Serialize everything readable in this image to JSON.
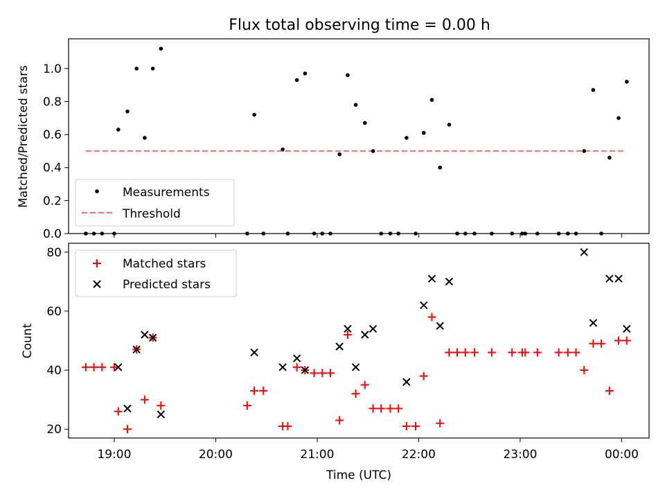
{
  "figure": {
    "title": "Flux total observing time = 0.00 h"
  },
  "chart_data": [
    {
      "type": "scatter",
      "name": "ratio-panel",
      "title": "Flux total observing time = 0.00 h",
      "xlabel": "",
      "ylabel": "Matched/Predicted stars",
      "xlim": [
        18.55,
        24.27
      ],
      "ylim": [
        0.0,
        1.18
      ],
      "yticks": [
        0.0,
        0.2,
        0.4,
        0.6,
        0.8,
        1.0
      ],
      "ytick_labels": [
        "0.0",
        "0.2",
        "0.4",
        "0.6",
        "0.8",
        "1.0"
      ],
      "xticks": [
        19,
        20,
        21,
        22,
        23,
        24
      ],
      "legend": {
        "position": "lower-left",
        "entries": [
          {
            "label": "Measurements",
            "marker": "dot",
            "color": "#000000"
          },
          {
            "label": "Threshold",
            "marker": "dashed-line",
            "color": "#ff6b6b"
          }
        ]
      },
      "threshold": {
        "x": [
          18.72,
          24.02
        ],
        "y": 0.5,
        "color": "#ff6b6b"
      },
      "series": [
        {
          "name": "Measurements",
          "color": "#000000",
          "points": [
            [
              18.72,
              0.0
            ],
            [
              18.8,
              0.0
            ],
            [
              18.88,
              0.0
            ],
            [
              19.0,
              0.0
            ],
            [
              19.04,
              0.63
            ],
            [
              19.13,
              0.74
            ],
            [
              19.22,
              1.0
            ],
            [
              19.3,
              0.58
            ],
            [
              19.38,
              1.0
            ],
            [
              19.46,
              1.12
            ],
            [
              20.31,
              0.0
            ],
            [
              20.38,
              0.72
            ],
            [
              20.47,
              0.0
            ],
            [
              20.66,
              0.51
            ],
            [
              20.71,
              0.0
            ],
            [
              20.8,
              0.93
            ],
            [
              20.88,
              0.97
            ],
            [
              20.97,
              0.0
            ],
            [
              21.05,
              0.0
            ],
            [
              21.13,
              0.0
            ],
            [
              21.22,
              0.48
            ],
            [
              21.3,
              0.96
            ],
            [
              21.38,
              0.78
            ],
            [
              21.47,
              0.67
            ],
            [
              21.55,
              0.5
            ],
            [
              21.63,
              0.0
            ],
            [
              21.72,
              0.0
            ],
            [
              21.8,
              0.0
            ],
            [
              21.88,
              0.58
            ],
            [
              21.97,
              0.0
            ],
            [
              22.05,
              0.61
            ],
            [
              22.13,
              0.81
            ],
            [
              22.21,
              0.4
            ],
            [
              22.3,
              0.66
            ],
            [
              22.38,
              0.0
            ],
            [
              22.46,
              0.0
            ],
            [
              22.55,
              0.0
            ],
            [
              22.72,
              0.0
            ],
            [
              22.92,
              0.0
            ],
            [
              23.02,
              0.0
            ],
            [
              23.05,
              0.0
            ],
            [
              23.17,
              0.0
            ],
            [
              23.38,
              0.0
            ],
            [
              23.47,
              0.0
            ],
            [
              23.55,
              0.0
            ],
            [
              23.63,
              0.5
            ],
            [
              23.72,
              0.87
            ],
            [
              23.8,
              0.0
            ],
            [
              23.88,
              0.46
            ],
            [
              23.97,
              0.7
            ],
            [
              24.05,
              0.92
            ]
          ]
        }
      ]
    },
    {
      "type": "scatter",
      "name": "count-panel",
      "title": "",
      "xlabel": "Time (UTC)",
      "ylabel": "Count",
      "xlim": [
        18.55,
        24.27
      ],
      "ylim": [
        17,
        83
      ],
      "yticks": [
        20,
        40,
        60,
        80
      ],
      "ytick_labels": [
        "20",
        "40",
        "60",
        "80"
      ],
      "xticks": [
        19,
        20,
        21,
        22,
        23,
        24
      ],
      "xtick_labels": [
        "19:00",
        "20:00",
        "21:00",
        "22:00",
        "23:00",
        "00:00"
      ],
      "legend": {
        "position": "upper-left",
        "entries": [
          {
            "label": "Matched stars",
            "marker": "plus",
            "color": "#ff0000"
          },
          {
            "label": "Predicted stars",
            "marker": "cross",
            "color": "#000000"
          }
        ]
      },
      "series": [
        {
          "name": "Matched stars",
          "marker": "plus",
          "color": "#ff0000",
          "points": [
            [
              18.72,
              41
            ],
            [
              18.8,
              41
            ],
            [
              18.88,
              41
            ],
            [
              19.0,
              41
            ],
            [
              19.04,
              26
            ],
            [
              19.13,
              20
            ],
            [
              19.22,
              47
            ],
            [
              19.3,
              30
            ],
            [
              19.38,
              51
            ],
            [
              19.46,
              28
            ],
            [
              20.31,
              28
            ],
            [
              20.38,
              33
            ],
            [
              20.47,
              33
            ],
            [
              20.66,
              21
            ],
            [
              20.71,
              21
            ],
            [
              20.8,
              41
            ],
            [
              20.88,
              40
            ],
            [
              20.97,
              39
            ],
            [
              21.05,
              39
            ],
            [
              21.13,
              39
            ],
            [
              21.22,
              23
            ],
            [
              21.3,
              52
            ],
            [
              21.38,
              32
            ],
            [
              21.47,
              35
            ],
            [
              21.55,
              27
            ],
            [
              21.63,
              27
            ],
            [
              21.72,
              27
            ],
            [
              21.8,
              27
            ],
            [
              21.88,
              21
            ],
            [
              21.97,
              21
            ],
            [
              22.05,
              38
            ],
            [
              22.13,
              58
            ],
            [
              22.21,
              22
            ],
            [
              22.3,
              46
            ],
            [
              22.38,
              46
            ],
            [
              22.46,
              46
            ],
            [
              22.55,
              46
            ],
            [
              22.72,
              46
            ],
            [
              22.92,
              46
            ],
            [
              23.02,
              46
            ],
            [
              23.05,
              46
            ],
            [
              23.17,
              46
            ],
            [
              23.38,
              46
            ],
            [
              23.47,
              46
            ],
            [
              23.55,
              46
            ],
            [
              23.63,
              40
            ],
            [
              23.72,
              49
            ],
            [
              23.8,
              49
            ],
            [
              23.88,
              33
            ],
            [
              23.97,
              50
            ],
            [
              24.05,
              50
            ]
          ]
        },
        {
          "name": "Predicted stars",
          "marker": "cross",
          "color": "#000000",
          "points": [
            [
              19.04,
              41
            ],
            [
              19.13,
              27
            ],
            [
              19.22,
              47
            ],
            [
              19.3,
              52
            ],
            [
              19.38,
              51
            ],
            [
              19.46,
              25
            ],
            [
              20.38,
              46
            ],
            [
              20.66,
              41
            ],
            [
              20.8,
              44
            ],
            [
              20.88,
              40
            ],
            [
              21.22,
              48
            ],
            [
              21.3,
              54
            ],
            [
              21.38,
              41
            ],
            [
              21.47,
              52
            ],
            [
              21.55,
              54
            ],
            [
              21.88,
              36
            ],
            [
              22.05,
              62
            ],
            [
              22.13,
              71
            ],
            [
              22.21,
              55
            ],
            [
              22.3,
              70
            ],
            [
              23.63,
              80
            ],
            [
              23.72,
              56
            ],
            [
              23.88,
              71
            ],
            [
              23.97,
              71
            ],
            [
              24.05,
              54
            ]
          ]
        }
      ]
    }
  ]
}
